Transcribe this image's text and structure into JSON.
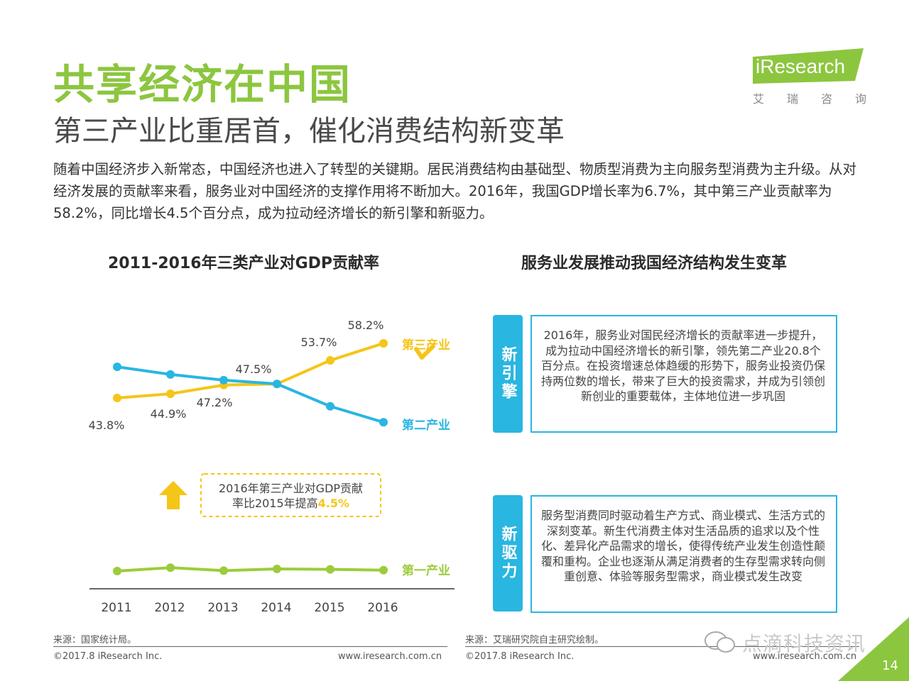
{
  "header": {
    "title": "共享经济在中国",
    "subtitle": "第三产业比重居首，催化消费结构新变革",
    "body": "随着中国经济步入新常态，中国经济也进入了转型的关键期。居民消费结构由基础型、物质型消费为主向服务型消费为主升级。从对经济发展的贡献率来看，服务业对中国经济的支撑作用将不断加大。2016年，我国GDP增长率为6.7%，其中第三产业贡献率为58.2%，同比增长4.5个百分点，成为拉动经济增长的新引擎和新驱力。"
  },
  "logo": {
    "brand": "iResearch",
    "cn": [
      "艾",
      "瑞",
      "咨",
      "询"
    ]
  },
  "left_section": {
    "title": "2011-2016年三类产业对GDP贡献率"
  },
  "right_section": {
    "title": "服务业发展推动我国经济结构发生变革"
  },
  "callout": {
    "line1": "2016年第三产业对GDP贡献",
    "line2_prefix": "率比2015年提高",
    "highlight": "4.5%"
  },
  "cards": [
    {
      "tag": "新引擎",
      "text": "2016年，服务业对国民经济增长的贡献率进一步提升，成为拉动中国经济增长的新引擎，领先第二产业20.8个百分点。在投资增速总体趋缓的形势下，服务业投资仍保持两位数的增长，带来了巨大的投资需求，并成为引领创新创业的重要载体，主体地位进一步巩固"
    },
    {
      "tag": "新驱力",
      "text": "服务型消费同时驱动着生产方式、商业模式、生活方式的深刻变革。新生代消费主体对生活品质的追求以及个性化、差异化产品需求的增长，使得传统产业发生创造性颠覆和重构。企业也逐渐从满足消费者的生存型需求转向侧重创意、体验等服务型需求，商业模式发生改变"
    }
  ],
  "footer": {
    "left_source": "来源：国家统计局。",
    "left_copyright": "©2017.8 iResearch Inc.",
    "left_url": "www.iresearch.com.cn",
    "right_source": "来源：艾瑞研究院自主研究绘制。",
    "right_copyright": "©2017.8 iResearch Inc.",
    "right_url": "www.iresearch.com.cn",
    "watermark": "点滴科技资讯",
    "page_number": "14"
  },
  "colors": {
    "accent_green": "#8cc63f",
    "tertiary": "#f5c518",
    "secondary": "#29b6e1",
    "primary": "#9ccc3a"
  },
  "chart_data": {
    "type": "line",
    "title": "2011-2016年三类产业对GDP贡献率",
    "categories": [
      "2011",
      "2012",
      "2013",
      "2014",
      "2015",
      "2016"
    ],
    "series": [
      {
        "name": "第三产业",
        "values": [
          43.8,
          44.9,
          47.2,
          47.5,
          53.7,
          58.2
        ],
        "labels": [
          "43.8%",
          "44.9%",
          "47.2%",
          "47.5%",
          "53.7%",
          "58.2%"
        ],
        "color": "#f5c518"
      },
      {
        "name": "第二产业",
        "values": [
          52.0,
          50.0,
          48.5,
          47.5,
          41.6,
          37.4
        ],
        "color": "#29b6e1"
      },
      {
        "name": "第一产业",
        "values": [
          4.2,
          5.0,
          4.3,
          4.7,
          4.6,
          4.4
        ],
        "color": "#9ccc3a"
      }
    ],
    "ylim": [
      0,
      60
    ],
    "grid": false,
    "legend": "inline-right"
  }
}
